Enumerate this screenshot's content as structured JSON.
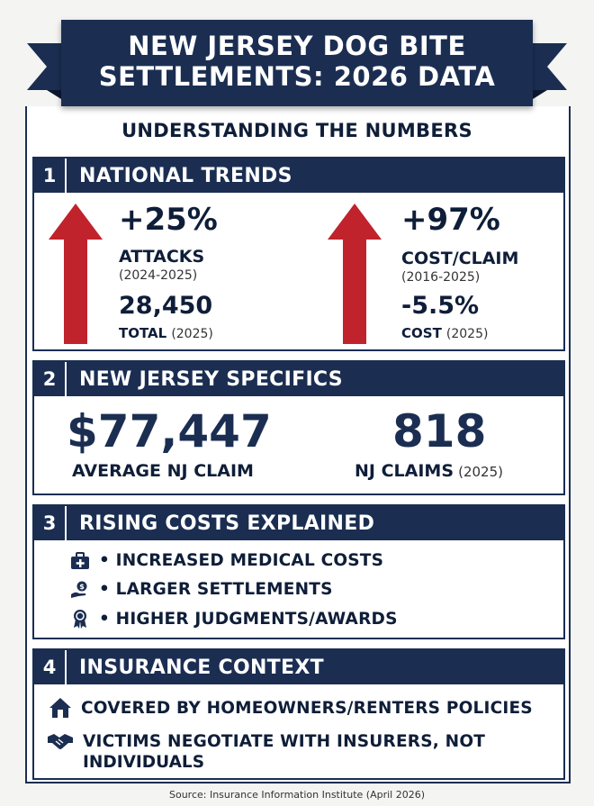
{
  "title": {
    "line1": "NEW JERSEY DOG BITE",
    "line2": "SETTLEMENTS: 2026 DATA"
  },
  "subtitle": "UNDERSTANDING THE NUMBERS",
  "sections": [
    {
      "number": "1",
      "title": "NATIONAL TRENDS",
      "left": {
        "pct": "+25%",
        "label": "ATTACKS",
        "period": "(2024-2025)",
        "count": "28,450",
        "count_label": "TOTAL",
        "count_period": "(2025)"
      },
      "right": {
        "pct": "+97%",
        "label": "COST/CLAIM",
        "period": "(2016-2025)",
        "change": "-5.5%",
        "change_label": "COST",
        "change_period": "(2025)"
      }
    },
    {
      "number": "2",
      "title": "NEW JERSEY SPECIFICS",
      "avg_value": "$77,447",
      "avg_label": "AVERAGE NJ CLAIM",
      "claims_value": "818",
      "claims_label": "NJ CLAIMS",
      "claims_period": "(2025)"
    },
    {
      "number": "3",
      "title": "RISING COSTS EXPLAINED",
      "items": [
        "• INCREASED MEDICAL COSTS",
        "• LARGER SETTLEMENTS",
        "• HIGHER JUDGMENTS/AWARDS"
      ]
    },
    {
      "number": "4",
      "title": "INSURANCE CONTEXT",
      "items": [
        "COVERED BY HOMEOWNERS/RENTERS POLICIES",
        "VICTIMS NEGOTIATE WITH INSURERS, NOT",
        "INDIVIDUALS"
      ]
    }
  ],
  "source": "Source: Insurance Information Institute (April 2026)",
  "colors": {
    "navy": "#1b2e52",
    "arrow_red": "#c0232b"
  },
  "icons": [
    "up-arrow-icon",
    "medical-kit-icon",
    "money-hand-icon",
    "award-ribbon-icon",
    "house-icon",
    "handshake-icon"
  ]
}
